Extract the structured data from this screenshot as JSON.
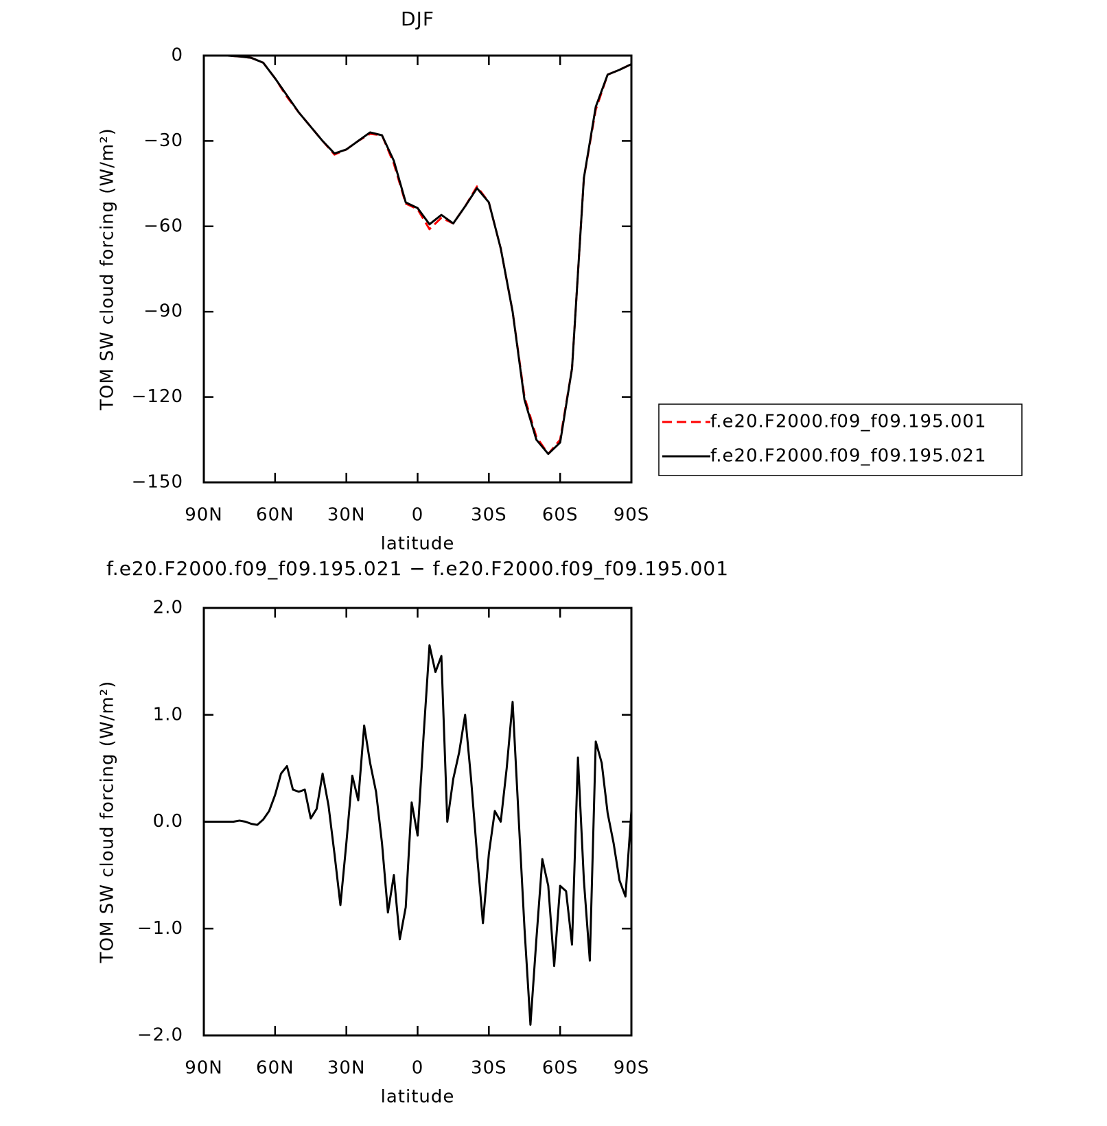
{
  "chart_data": [
    {
      "type": "line",
      "title": "DJF",
      "xlabel": "latitude",
      "ylabel": "TOM SW cloud forcing (W/m²)",
      "x": [
        90,
        85,
        80,
        75,
        70,
        65,
        60,
        55,
        50,
        45,
        40,
        35,
        30,
        25,
        20,
        15,
        10,
        5,
        0,
        -5,
        -10,
        -15,
        -20,
        -25,
        -30,
        -35,
        -40,
        -45,
        -50,
        -55,
        -60,
        -65,
        -70,
        -75,
        -80,
        -85,
        -90
      ],
      "xlim": [
        90,
        -90
      ],
      "xticks": [
        {
          "value": 90,
          "label": "90N"
        },
        {
          "value": 60,
          "label": "60N"
        },
        {
          "value": 30,
          "label": "30N"
        },
        0,
        {
          "value": -30,
          "label": "30S"
        },
        {
          "value": -60,
          "label": "60S"
        },
        {
          "value": -90,
          "label": "90S"
        }
      ],
      "ylim": [
        -150,
        0
      ],
      "yticks": [
        {
          "value": -150,
          "label": "−150"
        },
        {
          "value": -120,
          "label": "−120"
        },
        {
          "value": -90,
          "label": "−90"
        },
        {
          "value": -60,
          "label": "−60"
        },
        {
          "value": -30,
          "label": "−30"
        },
        0
      ],
      "legend": "right",
      "series": [
        {
          "name": "f.e20.F2000.f09_f09.195.001",
          "color": "#ff0000",
          "dashed": true,
          "values": [
            0,
            0,
            0,
            -0.3,
            -0.8,
            -2.5,
            -8,
            -14.5,
            -20,
            -25,
            -30,
            -34.8,
            -33,
            -30,
            -27.5,
            -28,
            -38,
            -52,
            -54,
            -61,
            -57,
            -59,
            -53,
            -46,
            -51.6,
            -67.8,
            -90,
            -120,
            -134,
            -140,
            -135,
            -110,
            -43,
            -19,
            -6.7,
            -5,
            -3
          ]
        },
        {
          "name": "f.e20.F2000.f09_f09.195.021",
          "color": "#000000",
          "dashed": false,
          "values": [
            0,
            0,
            0,
            -0.3,
            -0.8,
            -2.5,
            -8,
            -14,
            -20,
            -25,
            -30,
            -34.4,
            -33,
            -30,
            -27,
            -28,
            -37,
            -51.6,
            -53.6,
            -59.3,
            -56,
            -59,
            -53,
            -46.6,
            -51.6,
            -67.8,
            -90,
            -121,
            -135,
            -140,
            -136,
            -110,
            -43,
            -18,
            -6.7,
            -5,
            -3
          ]
        }
      ]
    },
    {
      "type": "line",
      "title": "f.e20.F2000.f09_f09.195.021 − f.e20.F2000.f09_f09.195.001",
      "xlabel": "latitude",
      "ylabel": "TOM SW cloud forcing (W/m²)",
      "x": [
        90,
        87.5,
        85,
        82.5,
        80,
        77.5,
        75,
        72.5,
        70,
        67.5,
        65,
        62.5,
        60,
        57.5,
        55,
        52.5,
        50,
        47.5,
        45,
        42.5,
        40,
        37.5,
        35,
        32.5,
        30,
        27.5,
        25,
        22.5,
        20,
        17.5,
        15,
        12.5,
        10,
        7.5,
        5,
        2.5,
        0,
        -2.5,
        -5,
        -7.5,
        -10,
        -12.5,
        -15,
        -17.5,
        -20,
        -22.5,
        -25,
        -27.5,
        -30,
        -32.5,
        -35,
        -37.5,
        -40,
        -42.5,
        -45,
        -47.5,
        -50,
        -52.5,
        -55,
        -57.5,
        -60,
        -62.5,
        -65,
        -67.5,
        -70,
        -72.5,
        -75,
        -77.5,
        -80,
        -82.5,
        -85,
        -87.5,
        -90
      ],
      "xlim": [
        90,
        -90
      ],
      "xticks": [
        {
          "value": 90,
          "label": "90N"
        },
        {
          "value": 60,
          "label": "60N"
        },
        {
          "value": 30,
          "label": "30N"
        },
        0,
        {
          "value": -30,
          "label": "30S"
        },
        {
          "value": -60,
          "label": "60S"
        },
        {
          "value": -90,
          "label": "90S"
        }
      ],
      "ylim": [
        -2,
        2
      ],
      "yticks": [
        {
          "value": -2,
          "label": "−2.0"
        },
        {
          "value": -1,
          "label": "−1.0"
        },
        {
          "value": 0,
          "label": "0.0"
        },
        {
          "value": 1,
          "label": "1.0"
        },
        {
          "value": 2,
          "label": "2.0"
        }
      ],
      "series": [
        {
          "color": "#000000",
          "dashed": false,
          "values": [
            0,
            0,
            0,
            0,
            0,
            0,
            0.01,
            0,
            -0.02,
            -0.03,
            0.02,
            0.1,
            0.25,
            0.45,
            0.52,
            0.3,
            0.28,
            0.3,
            0.03,
            0.12,
            0.45,
            0.15,
            -0.3,
            -0.78,
            -0.2,
            0.43,
            0.2,
            0.9,
            0.55,
            0.28,
            -0.2,
            -0.85,
            -0.5,
            -1.1,
            -0.8,
            0.18,
            -0.13,
            0.8,
            1.65,
            1.4,
            1.55,
            0,
            0.4,
            0.65,
            1.0,
            0.4,
            -0.3,
            -0.95,
            -0.3,
            0.1,
            0,
            0.5,
            1.12,
            0.05,
            -1.0,
            -1.9,
            -1.1,
            -0.35,
            -0.6,
            -1.35,
            -0.6,
            -0.65,
            -1.15,
            0.6,
            -0.55,
            -1.3,
            0.75,
            0.55,
            0.08,
            -0.2,
            -0.55,
            -0.7,
            0.1
          ]
        }
      ]
    }
  ]
}
